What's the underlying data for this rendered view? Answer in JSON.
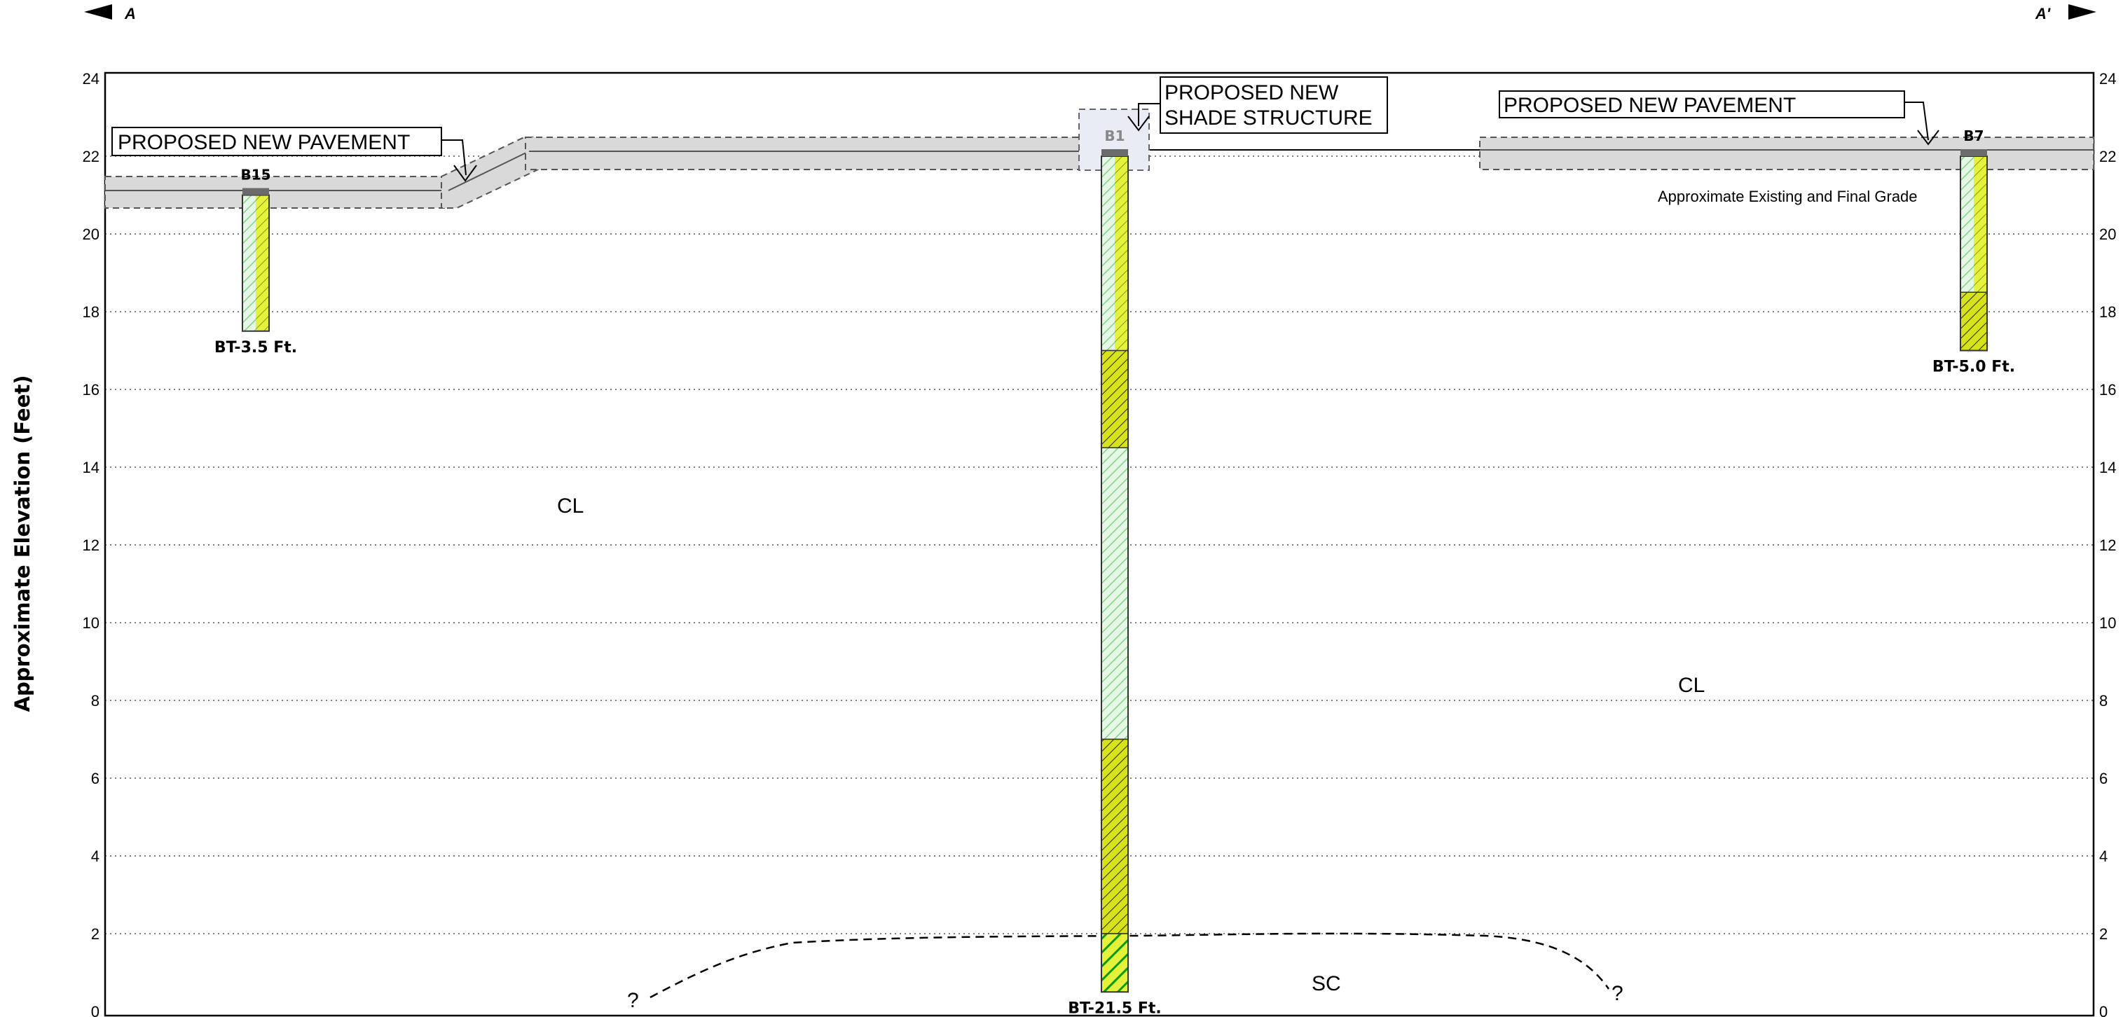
{
  "section": {
    "start_label": "A",
    "end_label": "A'"
  },
  "axis": {
    "ylabel": "Approximate Elevation (Feet)",
    "ymin": 0,
    "ymax": 24,
    "ticks": [
      0,
      2,
      4,
      6,
      8,
      10,
      12,
      14,
      16,
      18,
      20,
      22,
      24
    ],
    "grid_style": "dotted"
  },
  "annotations": {
    "pavement_left": "PROPOSED NEW PAVEMENT",
    "pavement_right": "PROPOSED NEW PAVEMENT",
    "shade_line1": "PROPOSED NEW",
    "shade_line2": "SHADE STRUCTURE",
    "grade_note": "Approximate Existing and Final Grade",
    "soil_cl_left": "CL",
    "soil_cl_right": "CL",
    "soil_sc": "SC",
    "query_left": "?",
    "query_right": "?"
  },
  "borings": [
    {
      "name": "B15",
      "depth_label": "BT-3.5 Ft.",
      "top_elev": 21.0,
      "bottom_elev": 17.5,
      "layers": [
        {
          "from": 21.0,
          "to": 17.5,
          "material": "CL"
        }
      ]
    },
    {
      "name": "B1",
      "depth_label": "BT-21.5 Ft.",
      "top_elev": 22.0,
      "bottom_elev": 0.5,
      "layers": [
        {
          "from": 22.0,
          "to": 17.0,
          "material": "CL"
        },
        {
          "from": 17.0,
          "to": 14.5,
          "material": "CL-ML"
        },
        {
          "from": 14.5,
          "to": 7.0,
          "material": "CL-light"
        },
        {
          "from": 7.0,
          "to": 2.0,
          "material": "CL-ML"
        },
        {
          "from": 2.0,
          "to": 0.5,
          "material": "SC"
        }
      ]
    },
    {
      "name": "B7",
      "depth_label": "BT-5.0 Ft.",
      "top_elev": 22.0,
      "bottom_elev": 17.0,
      "layers": [
        {
          "from": 22.0,
          "to": 18.5,
          "material": "CL"
        },
        {
          "from": 18.5,
          "to": 17.0,
          "material": "CL-ML"
        }
      ]
    }
  ],
  "colors": {
    "pavement_fill": "#d9d9d9",
    "pavement_edge": "#555555",
    "cl_hatch": "#9be29b",
    "yellow": "#e2f03a",
    "dark_yellow": "#c8d400",
    "green_stripe": "#0a9a0a",
    "shade_box": "#e9ecf5"
  }
}
